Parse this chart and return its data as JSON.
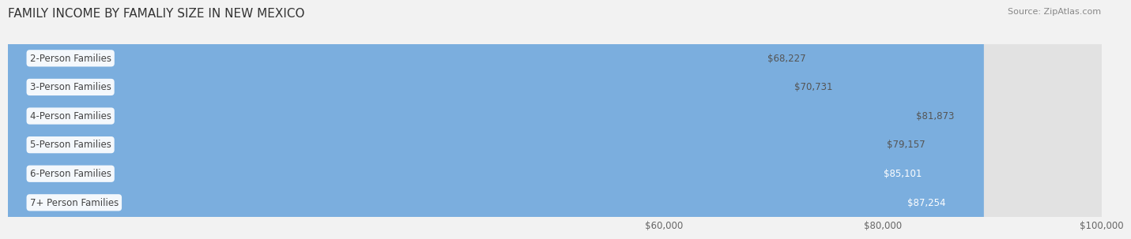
{
  "title": "FAMILY INCOME BY FAMALIY SIZE IN NEW MEXICO",
  "source": "Source: ZipAtlas.com",
  "categories": [
    "2-Person Families",
    "3-Person Families",
    "4-Person Families",
    "5-Person Families",
    "6-Person Families",
    "7+ Person Families"
  ],
  "values": [
    68227,
    70731,
    81873,
    79157,
    85101,
    87254
  ],
  "bar_colors": [
    "#7ECECA",
    "#A9A8D9",
    "#F07EB0",
    "#F5C07A",
    "#E07B72",
    "#7BAEDE"
  ],
  "value_labels": [
    "$68,227",
    "$70,731",
    "$81,873",
    "$79,157",
    "$85,101",
    "$87,254"
  ],
  "label_inside": [
    false,
    false,
    false,
    false,
    true,
    true
  ],
  "xmin": 0,
  "xmax": 100000,
  "xticks": [
    60000,
    80000,
    100000
  ],
  "xtick_labels": [
    "$60,000",
    "$80,000",
    "$100,000"
  ],
  "background_color": "#f2f2f2",
  "bar_bg_color": "#e2e2e2",
  "title_fontsize": 11,
  "source_fontsize": 8,
  "label_fontsize": 8.5,
  "value_fontsize": 8.5
}
